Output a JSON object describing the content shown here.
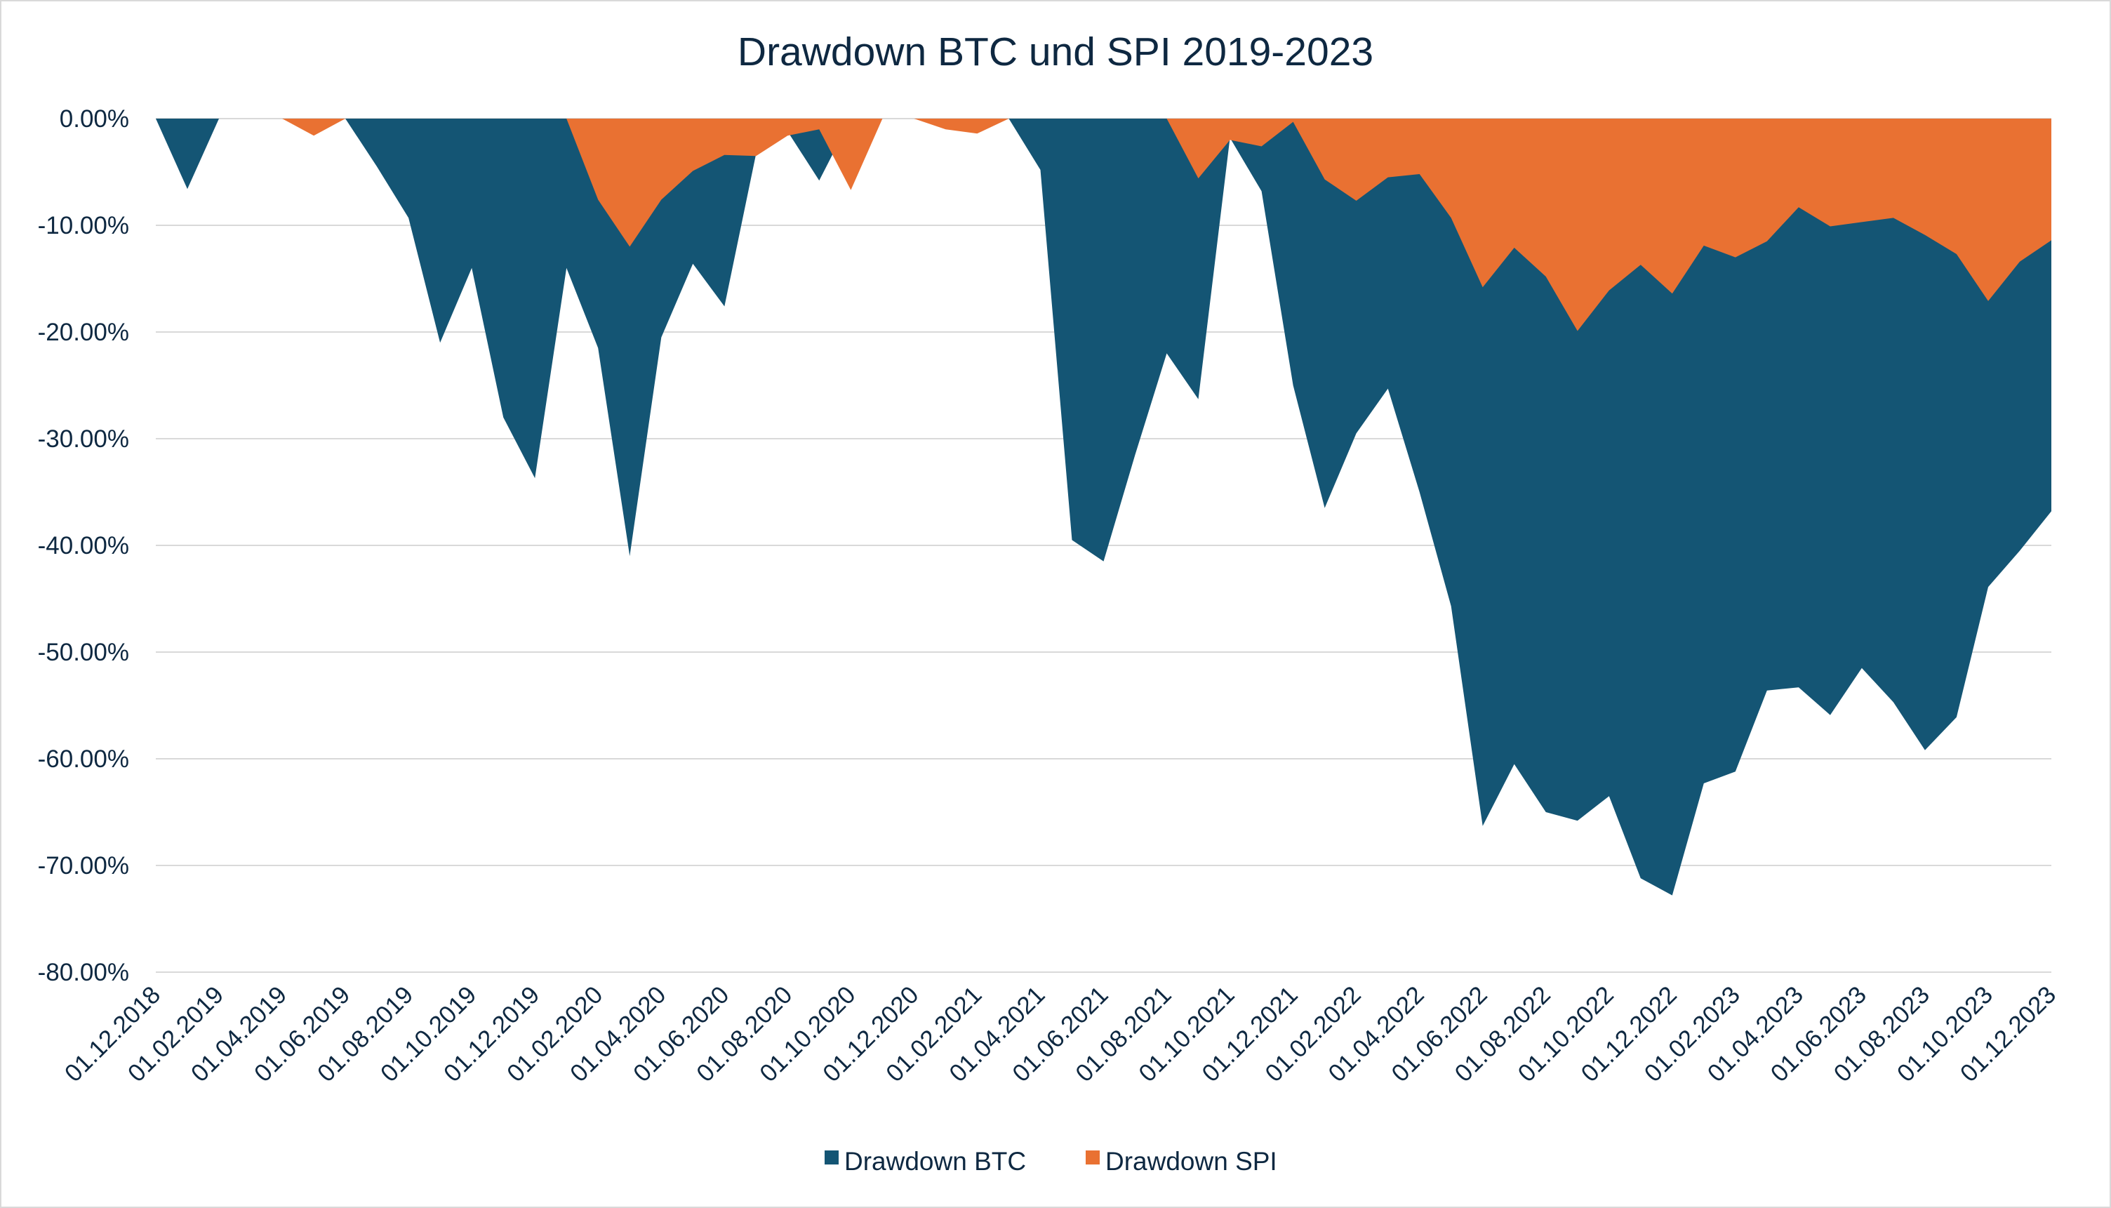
{
  "chart_data": {
    "type": "area",
    "title": "Drawdown BTC und SPI 2019-2023",
    "xlabel": "",
    "ylabel": "",
    "ylim": [
      -80,
      0
    ],
    "y_ticks": [
      "0.00%",
      "-10.00%",
      "-20.00%",
      "-30.00%",
      "-40.00%",
      "-50.00%",
      "-60.00%",
      "-70.00%",
      "-80.00%"
    ],
    "y_tick_values": [
      0,
      -10,
      -20,
      -30,
      -40,
      -50,
      -60,
      -70,
      -80
    ],
    "x_ticks": [
      "01.12.2018",
      "01.02.2019",
      "01.04.2019",
      "01.06.2019",
      "01.08.2019",
      "01.10.2019",
      "01.12.2019",
      "01.02.2020",
      "01.04.2020",
      "01.06.2020",
      "01.08.2020",
      "01.10.2020",
      "01.12.2020",
      "01.02.2021",
      "01.04.2021",
      "01.06.2021",
      "01.08.2021",
      "01.10.2021",
      "01.12.2021",
      "01.02.2022",
      "01.04.2022",
      "01.06.2022",
      "01.08.2022",
      "01.10.2022",
      "01.12.2022",
      "01.02.2023",
      "01.04.2023",
      "01.06.2023",
      "01.08.2023",
      "01.10.2023",
      "01.12.2023"
    ],
    "x_start": "01.12.2018",
    "x_step": "1 month",
    "grid": "horizontal",
    "legend": "bottom",
    "series": [
      {
        "name": "Drawdown BTC",
        "color": "#145574",
        "values": [
          0,
          -6.6,
          0,
          0,
          0,
          0,
          0,
          -4.5,
          -9.3,
          -21,
          -14,
          -28,
          -33.7,
          -14,
          -21.5,
          -41,
          -20.5,
          -13.6,
          -17.6,
          -3.3,
          -1.2,
          -5.8,
          0,
          0,
          0,
          0,
          0,
          0,
          -4.8,
          -39.5,
          -41.5,
          -31.5,
          -22,
          -26.3,
          -1.8,
          -6.8,
          -25,
          -36.5,
          -29.5,
          -25.3,
          -35,
          -45.7,
          -66.3,
          -60.5,
          -65,
          -65.8,
          -63.5,
          -71.2,
          -72.8,
          -62.3,
          -61.2,
          -53.6,
          -53.3,
          -55.9,
          -51.5,
          -54.7,
          -59.2,
          -56.1,
          -43.9,
          -40.5,
          -36.8
        ]
      },
      {
        "name": "Drawdown SPI",
        "color": "#E97132",
        "values": [
          0,
          0,
          0,
          0,
          0,
          -1.6,
          0,
          0,
          0,
          0,
          0,
          0,
          0,
          0,
          -7.6,
          -12,
          -7.6,
          -4.9,
          -3.4,
          -3.5,
          -1.6,
          -1.0,
          -6.7,
          0,
          0,
          -1.0,
          -1.4,
          0,
          0,
          0,
          0,
          0,
          0,
          -5.6,
          -2,
          -2.6,
          -0.3,
          -5.7,
          -7.7,
          -5.5,
          -5.2,
          -9.3,
          -15.8,
          -12.1,
          -14.8,
          -19.9,
          -16.1,
          -13.7,
          -16.4,
          -11.9,
          -13,
          -11.5,
          -8.3,
          -10.1,
          -9.7,
          -9.3,
          -10.9,
          -12.7,
          -17.1,
          -13.4,
          -11.4
        ]
      }
    ]
  }
}
